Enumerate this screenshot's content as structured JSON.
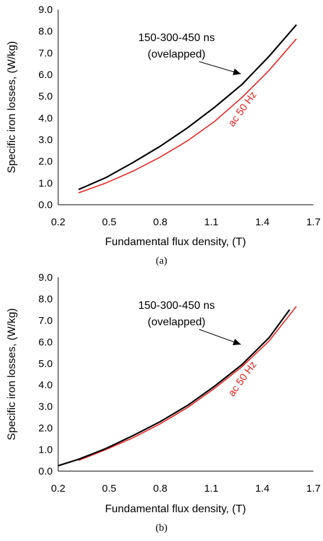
{
  "chart_data": [
    {
      "type": "line",
      "caption": "(a)",
      "xlabel": "Fundamental flux density, (T)",
      "ylabel": "Specific iron losses, (W/kg)",
      "xlim": [
        0.2,
        1.7
      ],
      "ylim": [
        0.0,
        9.0
      ],
      "xticks": [
        "0.2",
        "0.5",
        "0.8",
        "1.1",
        "1.4",
        "1.7"
      ],
      "yticks": [
        "0.0",
        "1.0",
        "2.0",
        "3.0",
        "4.0",
        "5.0",
        "6.0",
        "7.0",
        "8.0",
        "9.0"
      ],
      "grid": false,
      "series": [
        {
          "name": "150-300-450 ns (ovelapped)",
          "color": "#000000",
          "x": [
            0.32,
            0.48,
            0.64,
            0.8,
            0.96,
            1.12,
            1.28,
            1.44,
            1.6
          ],
          "y": [
            0.7,
            1.25,
            1.95,
            2.7,
            3.55,
            4.5,
            5.55,
            6.85,
            8.3
          ]
        },
        {
          "name": "ac 50 Hz",
          "color": "#e8211f",
          "x": [
            0.32,
            0.48,
            0.64,
            0.8,
            0.96,
            1.12,
            1.28,
            1.44,
            1.6
          ],
          "y": [
            0.55,
            1.0,
            1.55,
            2.2,
            2.95,
            3.85,
            4.95,
            6.2,
            7.65
          ]
        }
      ],
      "annotations": {
        "black_line1": "150-300-450 ns",
        "black_line2": "(ovelapped)",
        "red": "ac 50 Hz"
      }
    },
    {
      "type": "line",
      "caption": "(b)",
      "xlabel": "Fundamental flux density, (T)",
      "ylabel": "Specific iron losses, (W/kg)",
      "xlim": [
        0.2,
        1.7
      ],
      "ylim": [
        0.0,
        9.0
      ],
      "xticks": [
        "0.2",
        "0.5",
        "0.8",
        "1.1",
        "1.4",
        "1.7"
      ],
      "yticks": [
        "0.0",
        "1.0",
        "2.0",
        "3.0",
        "4.0",
        "5.0",
        "6.0",
        "7.0",
        "8.0",
        "9.0"
      ],
      "grid": false,
      "series": [
        {
          "name": "150-300-450 ns (ovelapped)",
          "color": "#000000",
          "x": [
            0.2,
            0.32,
            0.48,
            0.64,
            0.8,
            0.96,
            1.12,
            1.28,
            1.44,
            1.56
          ],
          "y": [
            0.25,
            0.55,
            1.05,
            1.65,
            2.3,
            3.05,
            3.95,
            4.95,
            6.2,
            7.5
          ]
        },
        {
          "name": "ac 50 Hz",
          "color": "#e8211f",
          "x": [
            0.32,
            0.48,
            0.64,
            0.8,
            0.96,
            1.12,
            1.28,
            1.44,
            1.6
          ],
          "y": [
            0.5,
            1.0,
            1.55,
            2.2,
            2.95,
            3.85,
            4.85,
            6.05,
            7.65
          ]
        }
      ],
      "annotations": {
        "black_line1": "150-300-450 ns",
        "black_line2": "(ovelapped)",
        "red": "ac 50 Hz"
      }
    }
  ]
}
